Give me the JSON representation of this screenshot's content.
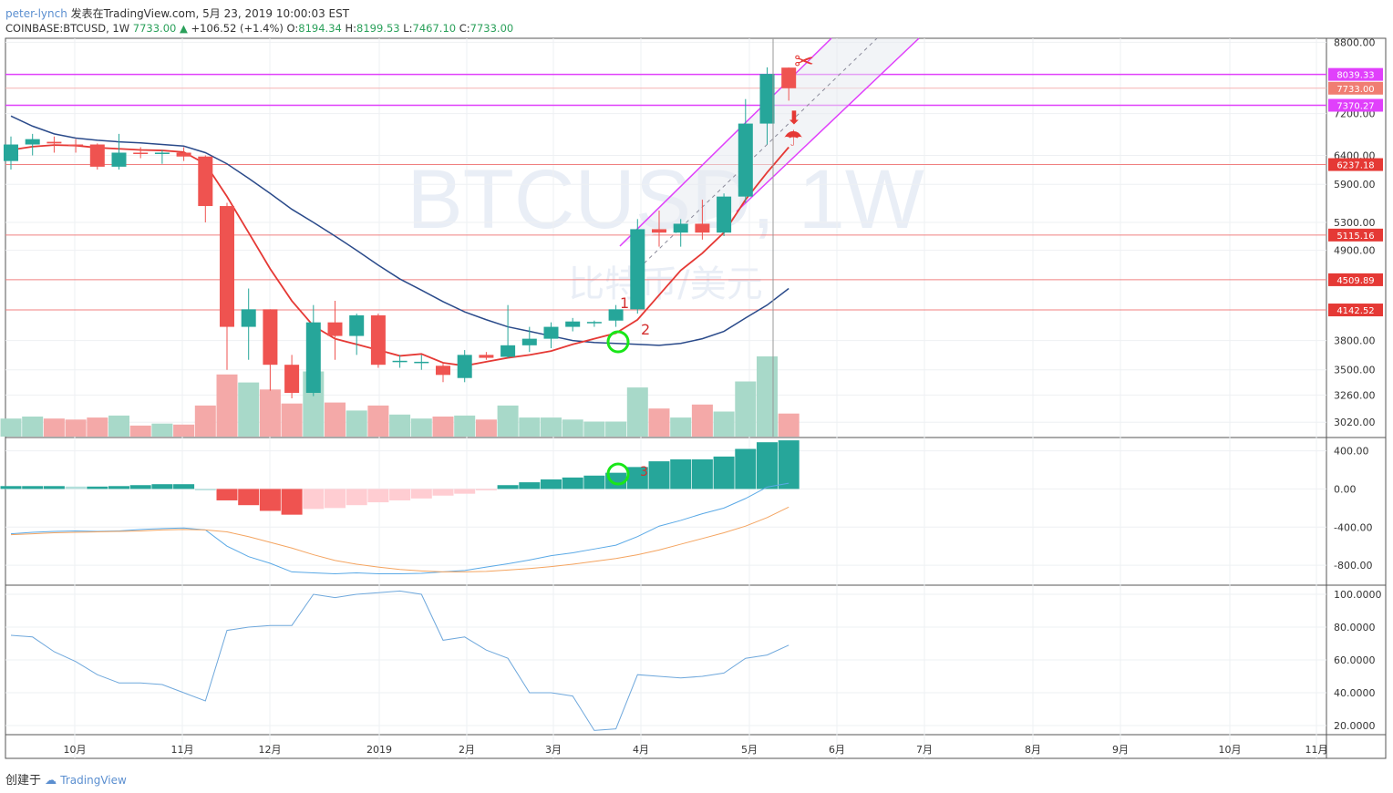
{
  "header": {
    "user": "peter-lynch",
    "published_text": "发表在TradingView.com, 5月 23, 2019 10:00:03 EST",
    "symbol": "COINBASE:BTCUSD, 1W",
    "last": "7733.00",
    "change": "+106.52 (+1.4%)",
    "o_label": "O:",
    "o": "8194.34",
    "h_label": "H:",
    "h": "8199.53",
    "l_label": "L:",
    "l": "7467.10",
    "c_label": "C:",
    "c": "7733.00"
  },
  "watermark": {
    "title": "BTCUSD, 1W",
    "subtitle": "比特币/美元"
  },
  "footer": {
    "created": "创建于",
    "brand": "TradingView"
  },
  "colors": {
    "up": "#26a69a",
    "down": "#ef5350",
    "up_vol": "#a8d9c9",
    "down_vol": "#f4a9a8",
    "ma_fast": "#e53935",
    "ma_slow": "#2a4a8a",
    "grid": "#eef0f3",
    "magenta": "#e040fb",
    "hline": "#f08080"
  },
  "chart_data": [
    {
      "type": "candlestick",
      "title": "COINBASE:BTCUSD, 1W",
      "x_labels": [
        "10月",
        "11月",
        "12月",
        "2019",
        "2月",
        "3月",
        "4月",
        "5月",
        "6月",
        "7月",
        "8月",
        "9月",
        "10月",
        "11月"
      ],
      "y_ticks": [
        8800,
        7200,
        6400,
        5900,
        5300,
        4900,
        3800,
        3500,
        3260,
        3020
      ],
      "y_scale": "log",
      "candles": [
        {
          "o": 6300,
          "h": 6750,
          "l": 6150,
          "c": 6600
        },
        {
          "o": 6600,
          "h": 6800,
          "l": 6400,
          "c": 6700
        },
        {
          "o": 6650,
          "h": 6750,
          "l": 6450,
          "c": 6620
        },
        {
          "o": 6600,
          "h": 6700,
          "l": 6450,
          "c": 6580
        },
        {
          "o": 6600,
          "h": 6620,
          "l": 6150,
          "c": 6200
        },
        {
          "o": 6200,
          "h": 6800,
          "l": 6150,
          "c": 6450
        },
        {
          "o": 6450,
          "h": 6550,
          "l": 6350,
          "c": 6430
        },
        {
          "o": 6450,
          "h": 6500,
          "l": 6250,
          "c": 6450
        },
        {
          "o": 6450,
          "h": 6550,
          "l": 6300,
          "c": 6380
        },
        {
          "o": 6380,
          "h": 6400,
          "l": 5300,
          "c": 5550
        },
        {
          "o": 5550,
          "h": 5600,
          "l": 3500,
          "c": 3950
        },
        {
          "o": 3950,
          "h": 4400,
          "l": 3600,
          "c": 4150
        },
        {
          "o": 4150,
          "h": 4150,
          "l": 3300,
          "c": 3550
        },
        {
          "o": 3550,
          "h": 3650,
          "l": 3230,
          "c": 3280
        },
        {
          "o": 3280,
          "h": 4200,
          "l": 3250,
          "c": 4000
        },
        {
          "o": 4000,
          "h": 4250,
          "l": 3600,
          "c": 3850
        },
        {
          "o": 3850,
          "h": 4100,
          "l": 3650,
          "c": 4080
        },
        {
          "o": 4080,
          "h": 4100,
          "l": 3520,
          "c": 3550
        },
        {
          "o": 3580,
          "h": 3650,
          "l": 3520,
          "c": 3590
        },
        {
          "o": 3580,
          "h": 3650,
          "l": 3500,
          "c": 3580
        },
        {
          "o": 3540,
          "h": 3560,
          "l": 3380,
          "c": 3450
        },
        {
          "o": 3420,
          "h": 3700,
          "l": 3380,
          "c": 3650
        },
        {
          "o": 3650,
          "h": 3680,
          "l": 3600,
          "c": 3620
        },
        {
          "o": 3630,
          "h": 4200,
          "l": 3620,
          "c": 3750
        },
        {
          "o": 3750,
          "h": 3950,
          "l": 3680,
          "c": 3820
        },
        {
          "o": 3820,
          "h": 4000,
          "l": 3720,
          "c": 3950
        },
        {
          "o": 3950,
          "h": 4050,
          "l": 3900,
          "c": 4010
        },
        {
          "o": 4000,
          "h": 4020,
          "l": 3950,
          "c": 4005
        },
        {
          "o": 4020,
          "h": 4200,
          "l": 3950,
          "c": 4150
        },
        {
          "o": 4150,
          "h": 5350,
          "l": 4100,
          "c": 5200
        },
        {
          "o": 5200,
          "h": 5480,
          "l": 4950,
          "c": 5150
        },
        {
          "o": 5150,
          "h": 5350,
          "l": 4950,
          "c": 5280
        },
        {
          "o": 5280,
          "h": 5650,
          "l": 5050,
          "c": 5150
        },
        {
          "o": 5150,
          "h": 5750,
          "l": 5100,
          "c": 5700
        },
        {
          "o": 5700,
          "h": 7500,
          "l": 5600,
          "c": 7000
        },
        {
          "o": 7000,
          "h": 8200,
          "l": 6600,
          "c": 8050
        },
        {
          "o": 8194.34,
          "h": 8199.53,
          "l": 7467.1,
          "c": 7733.0
        }
      ],
      "volumes": [
        0.18,
        0.2,
        0.18,
        0.17,
        0.19,
        0.21,
        0.11,
        0.13,
        0.12,
        0.31,
        0.62,
        0.54,
        0.47,
        0.33,
        0.65,
        0.34,
        0.26,
        0.31,
        0.22,
        0.18,
        0.2,
        0.21,
        0.17,
        0.31,
        0.19,
        0.19,
        0.17,
        0.15,
        0.15,
        0.49,
        0.28,
        0.19,
        0.32,
        0.25,
        0.55,
        0.8,
        0.23
      ],
      "ma_fast": [
        6500,
        6560,
        6590,
        6580,
        6540,
        6520,
        6500,
        6490,
        6460,
        6250,
        5700,
        5150,
        4650,
        4250,
        3960,
        3820,
        3760,
        3700,
        3640,
        3660,
        3570,
        3540,
        3580,
        3620,
        3650,
        3690,
        3760,
        3820,
        3880,
        4030,
        4320,
        4630,
        4860,
        5150,
        5650,
        6100,
        6550
      ],
      "ma_slow": [
        7150,
        6950,
        6800,
        6720,
        6680,
        6650,
        6630,
        6600,
        6570,
        6450,
        6250,
        6000,
        5750,
        5500,
        5300,
        5100,
        4900,
        4700,
        4520,
        4380,
        4240,
        4120,
        4030,
        3950,
        3900,
        3850,
        3800,
        3780,
        3770,
        3760,
        3750,
        3770,
        3820,
        3900,
        4050,
        4200,
        4400
      ],
      "price_lines": [
        8039.33,
        7733.0,
        7370.27,
        6237.18,
        5115.16,
        4509.89,
        4142.52
      ],
      "price_line_labels": [
        "8039.33",
        "7733.00",
        "7370.27",
        "6237.18",
        "5115.16",
        "4509.89",
        "4142.52"
      ],
      "annotations": [
        "1",
        "2",
        "3"
      ]
    },
    {
      "type": "bar",
      "title": "MACD",
      "y_ticks": [
        400,
        0,
        -400,
        -800
      ],
      "y_tick_labels": [
        "400.00",
        "0.00",
        "-400.00",
        "-800.00"
      ],
      "ylim": [
        -1000,
        530
      ],
      "histogram": [
        30,
        30,
        30,
        25,
        25,
        30,
        40,
        50,
        50,
        0,
        -120,
        -170,
        -230,
        -270,
        -210,
        -200,
        -170,
        -140,
        -120,
        -100,
        -70,
        -50,
        -5,
        40,
        70,
        100,
        120,
        140,
        170,
        230,
        290,
        310,
        310,
        340,
        420,
        490,
        510
      ],
      "macd": [
        -470,
        -455,
        -445,
        -440,
        -445,
        -440,
        -425,
        -415,
        -410,
        -430,
        -600,
        -710,
        -780,
        -870,
        -880,
        -890,
        -880,
        -890,
        -890,
        -885,
        -870,
        -855,
        -820,
        -785,
        -745,
        -700,
        -670,
        -630,
        -590,
        -500,
        -390,
        -330,
        -260,
        -200,
        -100,
        20,
        60
      ],
      "signal": [
        -480,
        -470,
        -460,
        -455,
        -450,
        -445,
        -440,
        -430,
        -425,
        -430,
        -450,
        -500,
        -560,
        -620,
        -690,
        -750,
        -790,
        -820,
        -845,
        -860,
        -870,
        -870,
        -865,
        -850,
        -835,
        -815,
        -790,
        -760,
        -730,
        -690,
        -640,
        -580,
        -520,
        -460,
        -390,
        -300,
        -190
      ]
    },
    {
      "type": "line",
      "title": "",
      "y_ticks": [
        100,
        80,
        60,
        40,
        20
      ],
      "y_tick_labels": [
        "100.0000",
        "80.0000",
        "60.0000",
        "40.0000",
        "20.0000"
      ],
      "ylim": [
        15,
        105
      ],
      "values": [
        75,
        74,
        65,
        59,
        51,
        46,
        46,
        45,
        40,
        35,
        78,
        80,
        81,
        81,
        100,
        98,
        100,
        101,
        102,
        100,
        72,
        74,
        66,
        61,
        40,
        40,
        38,
        17,
        18,
        51,
        50,
        49,
        50,
        52,
        61,
        63,
        69
      ]
    }
  ]
}
